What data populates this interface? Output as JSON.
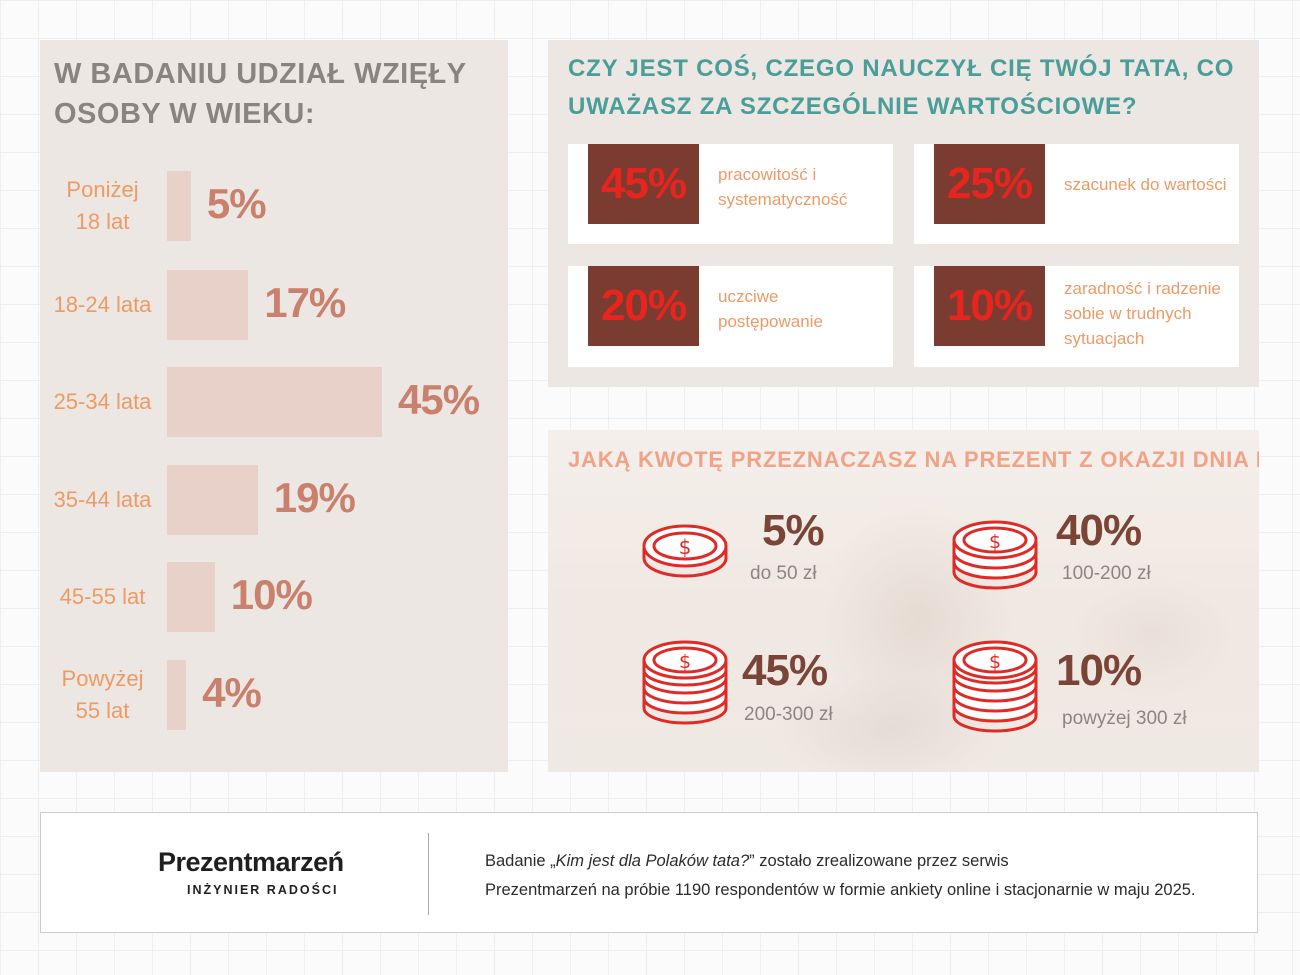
{
  "age_section": {
    "title": "W BADANIU UDZIAŁ WZIĘŁY OSOBY W WIEKU:"
  },
  "q1": {
    "title": "CZY JEST COŚ, CZEGO NAUCZYŁ CIĘ TWÓJ TATA, CO UWAŻASZ ZA SZCZEGÓLNIE WARTOŚCIOWE?",
    "cards": [
      {
        "pct": "45%",
        "text": "pracowitość i systematyczność"
      },
      {
        "pct": "25%",
        "text": "szacunek do wartości"
      },
      {
        "pct": "20%",
        "text": "uczciwe postępowanie"
      },
      {
        "pct": "10%",
        "text": "zaradność i radzenie sobie w trudnych sytuacjach"
      }
    ]
  },
  "q2": {
    "title": "JAKĄ KWOTĘ PRZEZNACZASZ NA PREZENT Z OKAZJI DNIA DZIECKA?",
    "items": [
      {
        "pct": "5%",
        "range": "do 50 zł"
      },
      {
        "pct": "40%",
        "range": "100-200 zł"
      },
      {
        "pct": "45%",
        "range": "200-300 zł"
      },
      {
        "pct": "10%",
        "range": "powyżej 300 zł"
      }
    ],
    "coin_color": "#e02a26"
  },
  "footer": {
    "logo": "Prezentmarzeń",
    "logo_sub": "INŻYNIER RADOŚCI",
    "line1_pre": "Badanie „",
    "line1_title": "Kim jest dla Polaków tata?",
    "line1_post": "” zostało zrealizowane przez serwis",
    "line2": "Prezentmarzeń na próbie 1190 respondentów w formie ankiety online i stacjonarnie w maju 2025."
  },
  "chart_data": {
    "type": "bar",
    "orientation": "horizontal",
    "title": "W BADANIU UDZIAŁ WZIĘŁY OSOBY W WIEKU:",
    "categories": [
      "Poniżej 18 lat",
      "18-24 lata",
      "25-34 lata",
      "35-44 lata",
      "45-55 lat",
      "Powyżej 55 lat"
    ],
    "values": [
      5,
      17,
      45,
      19,
      10,
      4
    ],
    "value_labels": [
      "5%",
      "17%",
      "45%",
      "19%",
      "10%",
      "4%"
    ],
    "bar_color": "#e7d1c8",
    "label_color": "#ee9a64",
    "value_color": "#c9806d",
    "xlim": [
      0,
      45
    ]
  }
}
